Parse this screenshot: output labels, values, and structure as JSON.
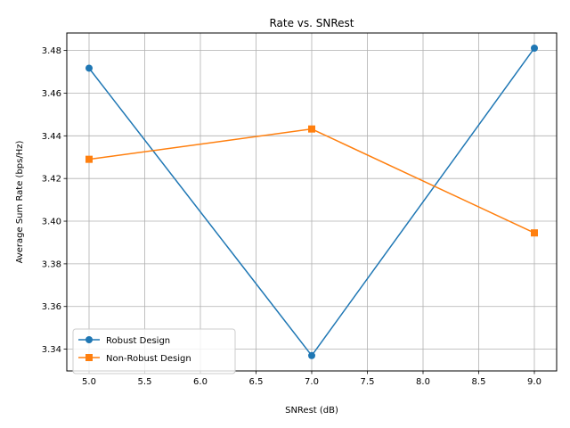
{
  "chart_data": {
    "type": "line",
    "title": "Rate vs. SNRest",
    "xlabel": "SNRest (dB)",
    "ylabel": "Average Sum Rate (bps/Hz)",
    "x": [
      5,
      7,
      9
    ],
    "xlim": [
      4.8,
      9.2
    ],
    "ylim": [
      3.3298,
      3.4882
    ],
    "xticks": [
      5.0,
      5.5,
      6.0,
      6.5,
      7.0,
      7.5,
      8.0,
      8.5,
      9.0
    ],
    "xtick_labels": [
      "5.0",
      "5.5",
      "6.0",
      "6.5",
      "7.0",
      "7.5",
      "8.0",
      "8.5",
      "9.0"
    ],
    "yticks": [
      3.34,
      3.36,
      3.38,
      3.4,
      3.42,
      3.44,
      3.46,
      3.48
    ],
    "ytick_labels": [
      "3.34",
      "3.36",
      "3.38",
      "3.40",
      "3.42",
      "3.44",
      "3.46",
      "3.48"
    ],
    "grid": true,
    "legend_position": "lower-left",
    "series": [
      {
        "name": "Robust Design",
        "values": [
          3.4717,
          3.337,
          3.4811
        ],
        "color": "#1f77b4",
        "marker": "circle"
      },
      {
        "name": "Non-Robust Design",
        "values": [
          3.429,
          3.4432,
          3.3945
        ],
        "color": "#ff7f0e",
        "marker": "square"
      }
    ]
  }
}
